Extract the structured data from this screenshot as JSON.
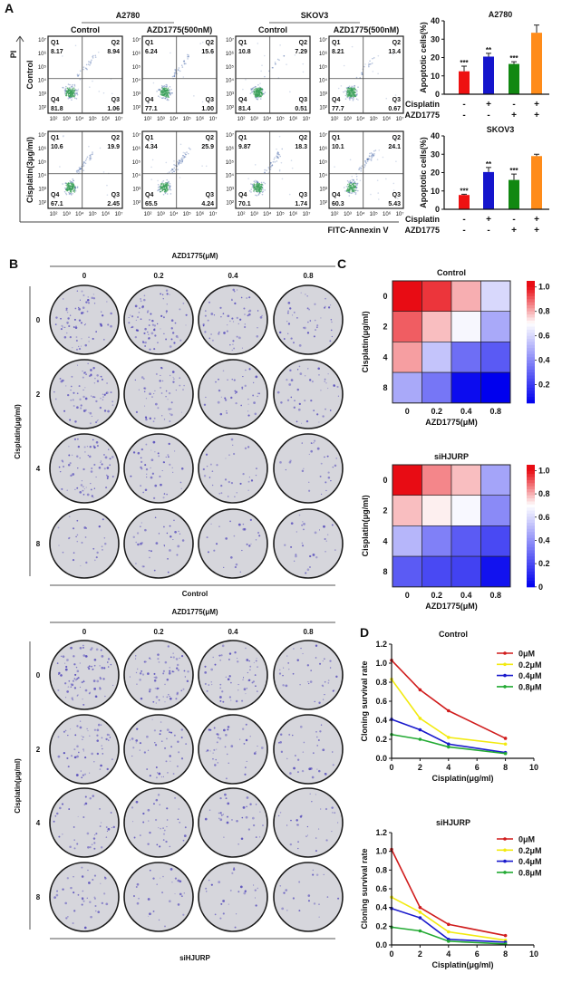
{
  "panel_a": {
    "label": "A",
    "cell_lines": [
      "A2780",
      "SKOV3"
    ],
    "column_headers": [
      "Control",
      "AZD1775(500nM)",
      "Control",
      "AZD1775(500nM)"
    ],
    "row_headers": [
      "Control",
      "Cisplatin(3μg/ml)"
    ],
    "y_axis": "PI",
    "x_axis": "FITC-Annexin V",
    "quadrant_names": {
      "q1": "Q1",
      "q2": "Q2",
      "q3": "Q3",
      "q4": "Q4"
    },
    "y_ticks": [
      "10⁷",
      "10⁶",
      "10⁵",
      "10⁴",
      "10³",
      "10²"
    ],
    "x_ticks": [
      "10²",
      "10³",
      "10⁴",
      "10⁵",
      "10⁶",
      "10⁷"
    ],
    "plots": [
      [
        {
          "q1": "8.17",
          "q2": "8.94",
          "q3": "1.06",
          "q4": "81.8"
        },
        {
          "q1": "6.24",
          "q2": "15.6",
          "q3": "1.00",
          "q4": "77.1"
        },
        {
          "q1": "10.8",
          "q2": "7.29",
          "q3": "0.51",
          "q4": "81.4"
        },
        {
          "q1": "8.21",
          "q2": "13.4",
          "q3": "0.67",
          "q4": "77.7"
        }
      ],
      [
        {
          "q1": "10.6",
          "q2": "19.9",
          "q3": "2.45",
          "q4": "67.1"
        },
        {
          "q1": "4.34",
          "q2": "25.9",
          "q3": "4.24",
          "q4": "65.5"
        },
        {
          "q1": "9.87",
          "q2": "18.3",
          "q3": "1.74",
          "q4": "70.1"
        },
        {
          "q1": "10.1",
          "q2": "24.1",
          "q3": "5.43",
          "q4": "60.3"
        }
      ]
    ],
    "dot_color": "#2a4f9a",
    "dense_color": "#3aa05a"
  },
  "panel_b": {
    "label": "B",
    "blocks": [
      {
        "top_label": "AZD1775(μM)",
        "columns": [
          "0",
          "0.2",
          "0.4",
          "0.8"
        ],
        "row_axis": "Cisplatin(μg/ml)",
        "rows": [
          "0",
          "2",
          "4",
          "8"
        ],
        "bottom_label": "Control",
        "colony_density": [
          [
            0.8,
            0.9,
            0.6,
            0.4
          ],
          [
            0.85,
            0.55,
            0.35,
            0.4
          ],
          [
            0.8,
            0.45,
            0.25,
            0.2
          ],
          [
            0.2,
            0.3,
            0.15,
            0.2
          ]
        ]
      },
      {
        "top_label": "AZD1775(μM)",
        "columns": [
          "0",
          "0.2",
          "0.4",
          "0.8"
        ],
        "row_axis": "Cisplatin(μg/ml)",
        "rows": [
          "0",
          "2",
          "4",
          "8"
        ],
        "bottom_label": "siHJURP",
        "colony_density": [
          [
            1.0,
            0.75,
            0.6,
            0.35
          ],
          [
            0.6,
            0.45,
            0.35,
            0.25
          ],
          [
            0.35,
            0.3,
            0.25,
            0.2
          ],
          [
            0.35,
            0.2,
            0.15,
            0.05
          ]
        ]
      }
    ],
    "colony_color": "#4a3fb8",
    "dish_color": "#d6d6dc"
  },
  "panel_c": {
    "label": "C"
  },
  "panel_d": {
    "label": "D"
  },
  "chart_data": [
    {
      "type": "bar",
      "title": "A2780",
      "ylabel": "Apoptotic cells(%)",
      "ylim": [
        0,
        40
      ],
      "yticks": [
        "0",
        "10",
        "20",
        "30",
        "40"
      ],
      "row_labels": [
        "Cisplatin",
        "AZD1775"
      ],
      "conditions": [
        [
          "-",
          "+",
          "-",
          "+"
        ],
        [
          "-",
          "-",
          "+",
          "+"
        ]
      ],
      "values": [
        12.5,
        20.5,
        16.5,
        33.5
      ],
      "errors": [
        2.8,
        1.8,
        1.2,
        4.2
      ],
      "significance": [
        "***",
        "**",
        "***",
        ""
      ],
      "colors": [
        "#ee1111",
        "#1515cc",
        "#118811",
        "#ff8c1a"
      ]
    },
    {
      "type": "bar",
      "title": "SKOV3",
      "ylabel": "Apoptotic cells(%)",
      "ylim": [
        0,
        40
      ],
      "yticks": [
        "0",
        "10",
        "20",
        "30",
        "40"
      ],
      "row_labels": [
        "Cisplatin",
        "AZD1775"
      ],
      "conditions": [
        [
          "-",
          "+",
          "-",
          "+"
        ],
        [
          "-",
          "-",
          "+",
          "+"
        ]
      ],
      "values": [
        7.8,
        20.3,
        16.0,
        29.0
      ],
      "errors": [
        0.4,
        2.5,
        3.2,
        1.0
      ],
      "significance": [
        "***",
        "**",
        "***",
        ""
      ],
      "colors": [
        "#ee1111",
        "#1515cc",
        "#118811",
        "#ff8c1a"
      ]
    },
    {
      "type": "heatmap",
      "title": "Control",
      "xlabel": "AZD1775(μM)",
      "ylabel": "Cisplatin(μg/ml)",
      "x": [
        "0",
        "0.2",
        "0.4",
        "0.8"
      ],
      "y": [
        "0",
        "2",
        "4",
        "8"
      ],
      "values": [
        [
          1.0,
          0.95,
          0.8,
          0.6
        ],
        [
          0.9,
          0.78,
          0.68,
          0.48
        ],
        [
          0.82,
          0.55,
          0.33,
          0.28
        ],
        [
          0.48,
          0.35,
          0.08,
          0.05
        ]
      ],
      "colorbar_ticks": [
        "1.0",
        "0.8",
        "0.6",
        "0.4",
        "0.2"
      ],
      "colorbar_range": [
        0.05,
        1.05
      ],
      "colors": {
        "low": "#0000ee",
        "mid": "#ffffff",
        "high": "#e80c14"
      }
    },
    {
      "type": "heatmap",
      "title": "siHJURP",
      "xlabel": "AZD1775(μM)",
      "ylabel": "Cisplatin(μg/ml)",
      "x": [
        "0",
        "0.2",
        "0.4",
        "0.8"
      ],
      "y": [
        "0",
        "2",
        "4",
        "8"
      ],
      "values": [
        [
          1.0,
          0.85,
          0.78,
          0.45
        ],
        [
          0.78,
          0.72,
          0.68,
          0.38
        ],
        [
          0.5,
          0.35,
          0.25,
          0.2
        ],
        [
          0.25,
          0.2,
          0.18,
          0.05
        ]
      ],
      "colorbar_ticks": [
        "1.0",
        "0.8",
        "0.6",
        "0.4",
        "0.2",
        "0"
      ],
      "colorbar_range": [
        0,
        1.05
      ],
      "colors": {
        "low": "#0000ee",
        "mid": "#ffffff",
        "high": "#e80c14"
      }
    },
    {
      "type": "line",
      "title": "Control",
      "xlabel": "Cisplatin(μg/ml)",
      "ylabel": "Cloning survival rate",
      "xlim": [
        0,
        10
      ],
      "ylim": [
        0,
        1.2
      ],
      "xticks": [
        "0",
        "2",
        "4",
        "6",
        "8",
        "10"
      ],
      "yticks": [
        "0.0",
        "0.2",
        "0.4",
        "0.6",
        "0.8",
        "1.0",
        "1.2"
      ],
      "x": [
        0,
        2,
        4,
        8
      ],
      "legend": "top-right",
      "series": [
        {
          "name": "0μM",
          "color": "#d01c1c",
          "values": [
            1.03,
            0.72,
            0.5,
            0.21
          ]
        },
        {
          "name": "0.2μM",
          "color": "#f2ea10",
          "values": [
            0.83,
            0.42,
            0.22,
            0.15
          ]
        },
        {
          "name": "0.4μM",
          "color": "#1a1acc",
          "values": [
            0.41,
            0.3,
            0.15,
            0.06
          ]
        },
        {
          "name": "0.8μM",
          "color": "#22aa33",
          "values": [
            0.25,
            0.2,
            0.12,
            0.05
          ]
        }
      ]
    },
    {
      "type": "line",
      "title": "siHJURP",
      "xlabel": "Cisplatin(μg/ml)",
      "ylabel": "Cloning survival rate",
      "xlim": [
        0,
        10
      ],
      "ylim": [
        0,
        1.2
      ],
      "xticks": [
        "0",
        "2",
        "4",
        "6",
        "8",
        "10"
      ],
      "yticks": [
        "0.0",
        "0.2",
        "0.4",
        "0.6",
        "0.8",
        "1.0",
        "1.2"
      ],
      "x": [
        0,
        2,
        4,
        8
      ],
      "legend": "top-right",
      "series": [
        {
          "name": "0μM",
          "color": "#d01c1c",
          "values": [
            1.02,
            0.4,
            0.22,
            0.1
          ]
        },
        {
          "name": "0.2μM",
          "color": "#f2ea10",
          "values": [
            0.51,
            0.35,
            0.14,
            0.05
          ]
        },
        {
          "name": "0.4μM",
          "color": "#1a1acc",
          "values": [
            0.39,
            0.29,
            0.06,
            0.03
          ]
        },
        {
          "name": "0.8μM",
          "color": "#22aa33",
          "values": [
            0.19,
            0.15,
            0.04,
            0.01
          ]
        }
      ]
    }
  ]
}
